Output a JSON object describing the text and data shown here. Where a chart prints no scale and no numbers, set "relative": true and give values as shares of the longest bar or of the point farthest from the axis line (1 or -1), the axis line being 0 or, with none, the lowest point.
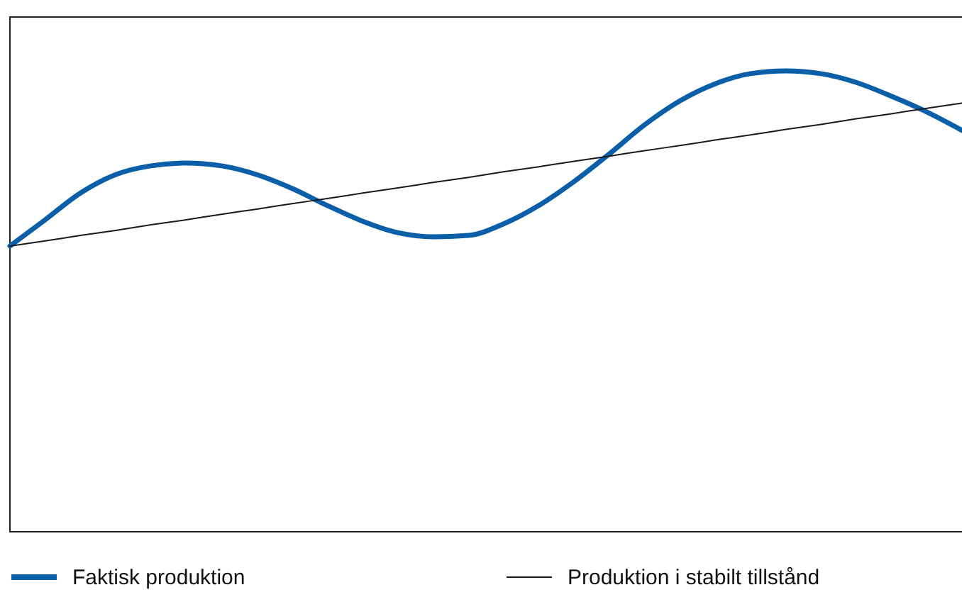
{
  "chart_data": {
    "type": "line",
    "relative": true,
    "legend": "bottom",
    "marker": "none",
    "line_style": "solid",
    "categories": [
      null,
      null,
      null,
      null,
      null,
      null,
      null,
      null,
      null,
      null,
      null,
      null,
      null,
      null,
      null,
      null,
      null,
      null,
      null,
      null,
      null,
      null,
      null,
      null,
      null,
      null,
      null,
      null
    ],
    "series": [
      {
        "name": "Faktisk produktion",
        "color": "#0a5fa8",
        "values": [
          0.62,
          0.677,
          0.735,
          0.775,
          0.794,
          0.8,
          0.794,
          0.775,
          0.745,
          0.708,
          0.674,
          0.649,
          0.64,
          0.643,
          0.668,
          0.708,
          0.76,
          0.82,
          0.883,
          0.935,
          0.972,
          0.994,
          1.0,
          0.994,
          0.975,
          0.945,
          0.911,
          0.871
        ]
      },
      {
        "name": "Produktion i stabilt tillstånd",
        "color": "#1a1a1a",
        "values": [
          0.62,
          0.631,
          0.643,
          0.654,
          0.666,
          0.677,
          0.689,
          0.7,
          0.712,
          0.723,
          0.735,
          0.746,
          0.758,
          0.769,
          0.781,
          0.792,
          0.804,
          0.815,
          0.827,
          0.838,
          0.85,
          0.861,
          0.873,
          0.884,
          0.896,
          0.907,
          0.919,
          0.93
        ]
      }
    ]
  }
}
